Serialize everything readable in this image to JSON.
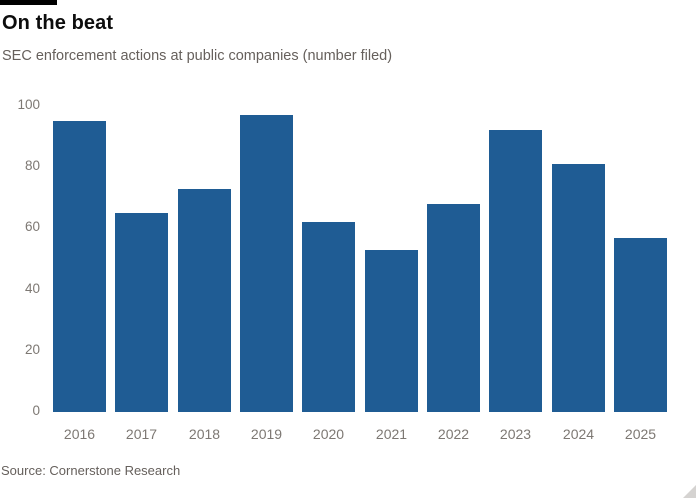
{
  "header": {
    "title": "On the beat",
    "subtitle": "SEC enforcement actions at public companies (number filed)"
  },
  "source": "Source: Cornerstone Research",
  "colors": {
    "bar": "#1f5c94",
    "accent_bar": "#000000",
    "title_text": "#0d0d0d",
    "subtitle_text": "#66605c",
    "axis_text": "#7d7873",
    "source_text": "#66605c"
  },
  "chart_data": {
    "type": "bar",
    "title": "On the beat",
    "subtitle": "SEC enforcement actions at public companies (number filed)",
    "categories": [
      "2016",
      "2017",
      "2018",
      "2019",
      "2020",
      "2021",
      "2022",
      "2023",
      "2024",
      "2025"
    ],
    "values": [
      95,
      65,
      73,
      97,
      62,
      53,
      68,
      92,
      81,
      57
    ],
    "xlabel": "",
    "ylabel": "",
    "ylim": [
      0,
      100
    ],
    "yticks": [
      0,
      20,
      40,
      60,
      80,
      100
    ],
    "grid": false,
    "legend": null,
    "source": "Source: Cornerstone Research"
  }
}
